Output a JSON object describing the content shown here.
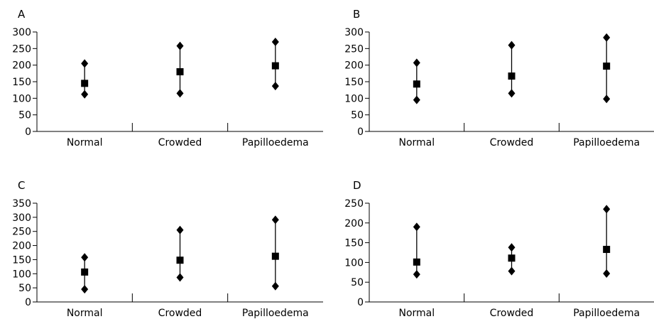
{
  "chart_data": [
    {
      "type": "scatter",
      "title": "A",
      "categories": [
        "Normal",
        "Crowded",
        "Papilloedema"
      ],
      "ylim": [
        0,
        300
      ],
      "yticks": [
        0,
        50,
        100,
        150,
        200,
        250,
        300
      ],
      "series": [
        {
          "marker": "diamond",
          "values": [
            205,
            258,
            270
          ]
        },
        {
          "marker": "square",
          "values": [
            145,
            180,
            198
          ]
        },
        {
          "marker": "diamond",
          "values": [
            112,
            115,
            137
          ]
        }
      ]
    },
    {
      "type": "scatter",
      "title": "B",
      "categories": [
        "Normal",
        "Crowded",
        "Papilloedema"
      ],
      "ylim": [
        0,
        300
      ],
      "yticks": [
        0,
        50,
        100,
        150,
        200,
        250,
        300
      ],
      "series": [
        {
          "marker": "diamond",
          "values": [
            207,
            260,
            283
          ]
        },
        {
          "marker": "square",
          "values": [
            143,
            167,
            197
          ]
        },
        {
          "marker": "diamond",
          "values": [
            95,
            115,
            98
          ]
        }
      ]
    },
    {
      "type": "scatter",
      "title": "C",
      "categories": [
        "Normal",
        "Crowded",
        "Papilloedema"
      ],
      "ylim": [
        0,
        350
      ],
      "yticks": [
        0,
        50,
        100,
        150,
        200,
        250,
        300,
        350
      ],
      "series": [
        {
          "marker": "diamond",
          "values": [
            158,
            255,
            291
          ]
        },
        {
          "marker": "square",
          "values": [
            106,
            148,
            162
          ]
        },
        {
          "marker": "diamond",
          "values": [
            45,
            87,
            56
          ]
        }
      ]
    },
    {
      "type": "scatter",
      "title": "D",
      "categories": [
        "Normal",
        "Crowded",
        "Papilloedema"
      ],
      "ylim": [
        0,
        250
      ],
      "yticks": [
        0,
        50,
        100,
        150,
        200,
        250
      ],
      "series": [
        {
          "marker": "diamond",
          "values": [
            190,
            138,
            235
          ]
        },
        {
          "marker": "square",
          "values": [
            101,
            111,
            133
          ]
        },
        {
          "marker": "diamond",
          "values": [
            70,
            78,
            72
          ]
        }
      ]
    }
  ],
  "colors": {
    "ink": "#000000",
    "background": "#ffffff"
  }
}
